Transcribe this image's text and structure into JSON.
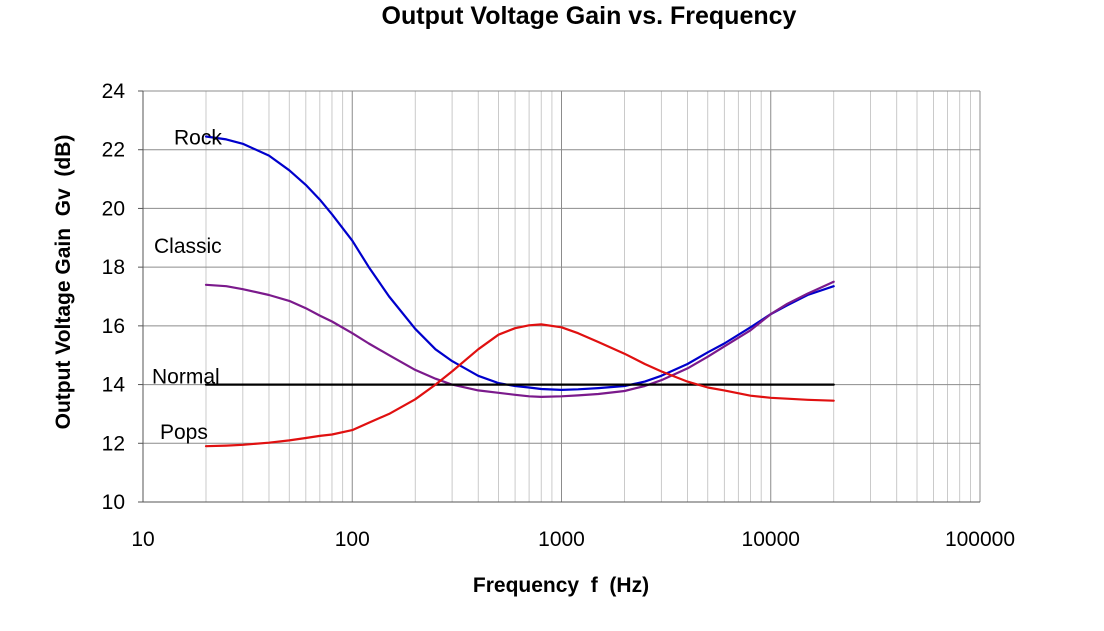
{
  "chart_data": {
    "type": "line",
    "title": "Output Voltage Gain vs. Frequency",
    "xlabel": "Frequency  f  (Hz)",
    "ylabel": "Output Voltage Gain  Gv  (dB)",
    "x_scale": "log",
    "xlim": [
      10,
      100000
    ],
    "ylim": [
      10,
      24
    ],
    "x_ticks": [
      "10",
      "100",
      "1000",
      "10000",
      "100000"
    ],
    "y_ticks": [
      "10",
      "12",
      "14",
      "16",
      "18",
      "20",
      "22",
      "24"
    ],
    "grid": true,
    "series": [
      {
        "name": "Rock",
        "color": "#0000cc",
        "points": [
          [
            20,
            22.45
          ],
          [
            25,
            22.35
          ],
          [
            30,
            22.2
          ],
          [
            40,
            21.8
          ],
          [
            50,
            21.3
          ],
          [
            60,
            20.8
          ],
          [
            70,
            20.3
          ],
          [
            80,
            19.8
          ],
          [
            100,
            18.9
          ],
          [
            120,
            18.0
          ],
          [
            150,
            17.0
          ],
          [
            200,
            15.9
          ],
          [
            250,
            15.2
          ],
          [
            300,
            14.8
          ],
          [
            400,
            14.3
          ],
          [
            500,
            14.05
          ],
          [
            600,
            13.95
          ],
          [
            700,
            13.9
          ],
          [
            800,
            13.85
          ],
          [
            1000,
            13.82
          ],
          [
            1200,
            13.84
          ],
          [
            1500,
            13.88
          ],
          [
            2000,
            13.95
          ],
          [
            2500,
            14.1
          ],
          [
            3000,
            14.3
          ],
          [
            4000,
            14.7
          ],
          [
            5000,
            15.1
          ],
          [
            6000,
            15.4
          ],
          [
            8000,
            15.95
          ],
          [
            10000,
            16.4
          ],
          [
            12000,
            16.7
          ],
          [
            15000,
            17.05
          ],
          [
            20000,
            17.35
          ]
        ]
      },
      {
        "name": "Classic",
        "color": "#7b1a8c",
        "points": [
          [
            20,
            17.4
          ],
          [
            25,
            17.35
          ],
          [
            30,
            17.25
          ],
          [
            40,
            17.05
          ],
          [
            50,
            16.85
          ],
          [
            60,
            16.6
          ],
          [
            70,
            16.35
          ],
          [
            80,
            16.15
          ],
          [
            100,
            15.75
          ],
          [
            120,
            15.4
          ],
          [
            150,
            15.0
          ],
          [
            200,
            14.5
          ],
          [
            250,
            14.2
          ],
          [
            300,
            14.0
          ],
          [
            400,
            13.8
          ],
          [
            500,
            13.72
          ],
          [
            600,
            13.65
          ],
          [
            700,
            13.6
          ],
          [
            800,
            13.58
          ],
          [
            1000,
            13.6
          ],
          [
            1200,
            13.63
          ],
          [
            1500,
            13.68
          ],
          [
            2000,
            13.78
          ],
          [
            2500,
            13.95
          ],
          [
            3000,
            14.15
          ],
          [
            4000,
            14.55
          ],
          [
            5000,
            14.95
          ],
          [
            6000,
            15.3
          ],
          [
            8000,
            15.85
          ],
          [
            10000,
            16.4
          ],
          [
            12000,
            16.75
          ],
          [
            15000,
            17.1
          ],
          [
            20000,
            17.5
          ]
        ]
      },
      {
        "name": "Normal",
        "color": "#000000",
        "points": [
          [
            20,
            14.0
          ],
          [
            20000,
            14.0
          ]
        ]
      },
      {
        "name": "Pops",
        "color": "#e01010",
        "points": [
          [
            20,
            11.9
          ],
          [
            25,
            11.92
          ],
          [
            30,
            11.95
          ],
          [
            40,
            12.02
          ],
          [
            50,
            12.1
          ],
          [
            60,
            12.18
          ],
          [
            70,
            12.25
          ],
          [
            80,
            12.3
          ],
          [
            100,
            12.45
          ],
          [
            120,
            12.7
          ],
          [
            150,
            13.0
          ],
          [
            200,
            13.5
          ],
          [
            250,
            14.0
          ],
          [
            300,
            14.45
          ],
          [
            400,
            15.2
          ],
          [
            500,
            15.7
          ],
          [
            600,
            15.92
          ],
          [
            700,
            16.02
          ],
          [
            800,
            16.05
          ],
          [
            1000,
            15.95
          ],
          [
            1200,
            15.75
          ],
          [
            1500,
            15.45
          ],
          [
            2000,
            15.05
          ],
          [
            2500,
            14.7
          ],
          [
            3000,
            14.45
          ],
          [
            4000,
            14.1
          ],
          [
            5000,
            13.9
          ],
          [
            6000,
            13.8
          ],
          [
            8000,
            13.62
          ],
          [
            10000,
            13.55
          ],
          [
            12000,
            13.52
          ],
          [
            15000,
            13.48
          ],
          [
            20000,
            13.45
          ]
        ]
      }
    ]
  }
}
